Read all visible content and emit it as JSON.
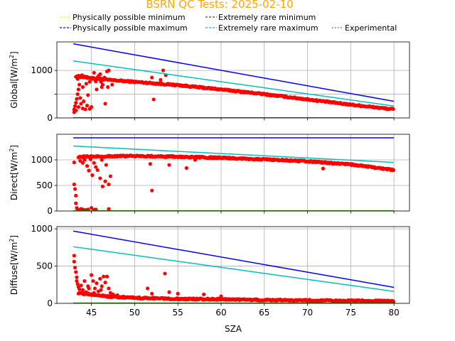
{
  "figure": {
    "title": "BSRN QC Tests: 2025-02-10",
    "title_color": "#ffa500"
  },
  "legend": {
    "entries": [
      {
        "label": "Physically possible minimum",
        "color": "#ffff00",
        "style": "dashed"
      },
      {
        "label": "Extremely rare minimum",
        "color": "#008000",
        "style": "dashed"
      },
      {
        "label": "Physically possible maximum",
        "color": "#0000ff",
        "style": "dashed"
      },
      {
        "label": "Extremely rare maximum",
        "color": "#00bfbf",
        "style": "dashed"
      },
      {
        "label": "Experimental",
        "color": "#ff0000",
        "style": "dotted"
      }
    ]
  },
  "chart_data": [
    {
      "type": "scatter",
      "ylabel": "Global[W/m$^2$]",
      "ylabel_text": "Global[W/m",
      "xlim": [
        41,
        81.8
      ],
      "ylim": [
        0,
        1600
      ],
      "yticks": [
        0,
        500,
        1000
      ],
      "ytick_labels": [
        "0",
        "",
        "1000"
      ],
      "xticks": [
        45,
        50,
        55,
        60,
        65,
        70,
        75,
        80
      ],
      "grid": true,
      "lines": [
        {
          "name": "Physically possible maximum",
          "color": "#0000ff",
          "x": [
            42.9,
            80.0
          ],
          "y": [
            1560,
            350
          ]
        },
        {
          "name": "Extremely rare maximum",
          "color": "#00bfbf",
          "x": [
            42.9,
            80.0
          ],
          "y": [
            1200,
            250
          ]
        },
        {
          "name": "Extremely rare minimum",
          "color": "#008000",
          "x": [
            42.9,
            80.0
          ],
          "y": [
            4,
            4
          ]
        },
        {
          "name": "Physically possible minimum",
          "color": "#ffff00",
          "x": [
            42.9,
            80.0
          ],
          "y": [
            -4,
            -4
          ]
        }
      ],
      "scatter_color": "#ff0000",
      "main_curve": {
        "x": [
          43.2,
          47,
          50,
          55,
          60,
          65,
          70,
          75,
          80
        ],
        "y": [
          880,
          800,
          760,
          690,
          600,
          500,
          390,
          280,
          180
        ]
      },
      "outliers": [
        [
          43.0,
          120
        ],
        [
          43.0,
          180
        ],
        [
          43.1,
          250
        ],
        [
          43.2,
          320
        ],
        [
          43.3,
          400
        ],
        [
          43.4,
          500
        ],
        [
          43.5,
          600
        ],
        [
          43.6,
          700
        ],
        [
          43.2,
          160
        ],
        [
          43.5,
          230
        ],
        [
          43.8,
          300
        ],
        [
          44.0,
          200
        ],
        [
          44.3,
          180
        ],
        [
          44.5,
          260
        ],
        [
          44.8,
          190
        ],
        [
          45.0,
          230
        ],
        [
          43.4,
          820
        ],
        [
          43.6,
          880
        ],
        [
          43.9,
          900
        ],
        [
          44.2,
          860
        ],
        [
          44.5,
          840
        ],
        [
          44.8,
          760
        ],
        [
          45.1,
          820
        ],
        [
          45.3,
          950
        ],
        [
          45.5,
          770
        ],
        [
          45.8,
          880
        ],
        [
          46.0,
          920
        ],
        [
          46.3,
          700
        ],
        [
          46.5,
          850
        ],
        [
          46.8,
          980
        ],
        [
          47.0,
          1000
        ],
        [
          46.2,
          650
        ],
        [
          46.6,
          300
        ],
        [
          46.9,
          650
        ],
        [
          47.4,
          700
        ],
        [
          52.0,
          850
        ],
        [
          52.2,
          390
        ],
        [
          53.0,
          800
        ],
        [
          53.3,
          1000
        ],
        [
          53.6,
          900
        ],
        [
          44.0,
          650
        ],
        [
          44.4,
          720
        ],
        [
          45.6,
          600
        ],
        [
          46.1,
          760
        ],
        [
          43.7,
          420
        ],
        [
          44.1,
          350
        ],
        [
          44.6,
          480
        ]
      ]
    },
    {
      "type": "scatter",
      "ylabel": "Direct[W/m$^2$]",
      "ylabel_text": "Direct[W/m",
      "xlim": [
        41,
        81.8
      ],
      "ylim": [
        0,
        1500
      ],
      "yticks": [
        0,
        500,
        1000
      ],
      "ytick_labels": [
        "0",
        "500",
        "1000"
      ],
      "xticks": [
        45,
        50,
        55,
        60,
        65,
        70,
        75,
        80
      ],
      "grid": true,
      "lines": [
        {
          "name": "Physically possible maximum",
          "color": "#0000ff",
          "x": [
            42.9,
            80.0
          ],
          "y": [
            1430,
            1430
          ]
        },
        {
          "name": "Extremely rare maximum",
          "color": "#00bfbf",
          "x": [
            42.9,
            80.0
          ],
          "y": [
            1270,
            950
          ]
        },
        {
          "name": "Extremely rare minimum",
          "color": "#008000",
          "x": [
            42.9,
            80.0
          ],
          "y": [
            4,
            4
          ]
        },
        {
          "name": "Physically possible minimum",
          "color": "#ffff00",
          "x": [
            42.9,
            80.0
          ],
          "y": [
            -4,
            -4
          ]
        }
      ],
      "scatter_color": "#ff0000",
      "main_curve": {
        "x": [
          43.5,
          47,
          50,
          55,
          60,
          65,
          70,
          75,
          80
        ],
        "y": [
          1060,
          1070,
          1075,
          1060,
          1040,
          1010,
          970,
          910,
          800
        ]
      },
      "outliers": [
        [
          43.0,
          950
        ],
        [
          43.0,
          520
        ],
        [
          43.1,
          430
        ],
        [
          43.2,
          300
        ],
        [
          43.2,
          150
        ],
        [
          43.3,
          60
        ],
        [
          43.4,
          30
        ],
        [
          43.6,
          20
        ],
        [
          43.8,
          40
        ],
        [
          44.0,
          30
        ],
        [
          44.3,
          20
        ],
        [
          44.6,
          30
        ],
        [
          45.0,
          60
        ],
        [
          45.3,
          20
        ],
        [
          45.5,
          30
        ],
        [
          47.0,
          40
        ],
        [
          44.2,
          1000
        ],
        [
          44.5,
          880
        ],
        [
          44.7,
          790
        ],
        [
          45.1,
          700
        ],
        [
          45.3,
          940
        ],
        [
          45.5,
          860
        ],
        [
          45.7,
          800
        ],
        [
          46.0,
          640
        ],
        [
          46.2,
          1000
        ],
        [
          46.3,
          480
        ],
        [
          46.6,
          580
        ],
        [
          46.7,
          900
        ],
        [
          47.0,
          520
        ],
        [
          47.2,
          680
        ],
        [
          52.0,
          400
        ],
        [
          51.8,
          920
        ],
        [
          54.0,
          900
        ],
        [
          56.0,
          840
        ],
        [
          57.0,
          1000
        ],
        [
          71.8,
          830
        ],
        [
          44.9,
          1010
        ],
        [
          43.7,
          980
        ],
        [
          44.0,
          940
        ]
      ]
    },
    {
      "type": "scatter",
      "ylabel": "Diffuse[W/m$^2$]",
      "ylabel_text": "Diffuse[W/m",
      "xlabel": "SZA",
      "xlim": [
        41,
        81.8
      ],
      "ylim": [
        0,
        1030
      ],
      "yticks": [
        0,
        500,
        1000
      ],
      "ytick_labels": [
        "0",
        "500",
        "1000"
      ],
      "xticks": [
        45,
        50,
        55,
        60,
        65,
        70,
        75,
        80
      ],
      "xtick_labels": [
        "45",
        "50",
        "55",
        "60",
        "65",
        "70",
        "75",
        "80"
      ],
      "grid": true,
      "lines": [
        {
          "name": "Physically possible maximum",
          "color": "#0000ff",
          "x": [
            42.9,
            80.0
          ],
          "y": [
            970,
            215
          ]
        },
        {
          "name": "Extremely rare maximum",
          "color": "#00bfbf",
          "x": [
            42.9,
            80.0
          ],
          "y": [
            760,
            160
          ]
        },
        {
          "name": "Extremely rare minimum",
          "color": "#008000",
          "x": [
            42.9,
            80.0
          ],
          "y": [
            3,
            3
          ]
        },
        {
          "name": "Physically possible minimum",
          "color": "#ffff00",
          "x": [
            42.9,
            80.0
          ],
          "y": [
            -3,
            -3
          ]
        }
      ],
      "scatter_color": "#ff0000",
      "main_curve": {
        "x": [
          43.5,
          47,
          50,
          55,
          60,
          65,
          70,
          75,
          80
        ],
        "y": [
          140,
          90,
          75,
          60,
          55,
          45,
          40,
          35,
          30
        ]
      },
      "outliers": [
        [
          43.0,
          640
        ],
        [
          43.0,
          560
        ],
        [
          43.1,
          480
        ],
        [
          43.2,
          420
        ],
        [
          43.3,
          350
        ],
        [
          43.3,
          300
        ],
        [
          43.4,
          260
        ],
        [
          43.5,
          220
        ],
        [
          43.6,
          190
        ],
        [
          43.8,
          240
        ],
        [
          44.0,
          180
        ],
        [
          44.2,
          300
        ],
        [
          44.4,
          150
        ],
        [
          44.6,
          230
        ],
        [
          44.8,
          120
        ],
        [
          45.0,
          380
        ],
        [
          45.2,
          300
        ],
        [
          45.4,
          200
        ],
        [
          45.6,
          270
        ],
        [
          45.8,
          160
        ],
        [
          46.0,
          330
        ],
        [
          46.2,
          230
        ],
        [
          46.4,
          360
        ],
        [
          46.6,
          280
        ],
        [
          46.8,
          360
        ],
        [
          47.0,
          200
        ],
        [
          47.2,
          140
        ],
        [
          47.5,
          120
        ],
        [
          48.0,
          110
        ],
        [
          51.5,
          200
        ],
        [
          52.0,
          130
        ],
        [
          53.5,
          400
        ],
        [
          54.0,
          150
        ],
        [
          55.0,
          130
        ],
        [
          58.0,
          120
        ],
        [
          60.0,
          95
        ],
        [
          44.1,
          120
        ],
        [
          44.7,
          200
        ],
        [
          45.3,
          140
        ],
        [
          46.1,
          180
        ]
      ]
    }
  ]
}
